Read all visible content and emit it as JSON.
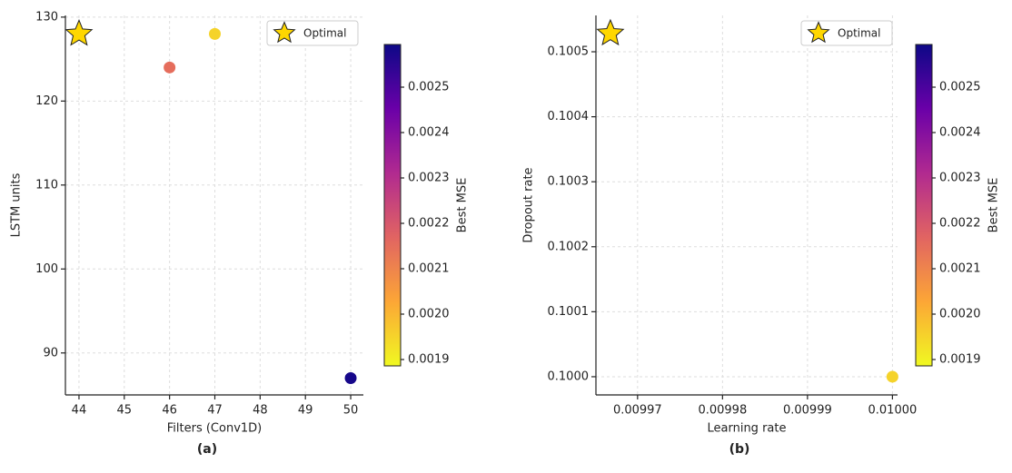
{
  "chart_data": [
    {
      "type": "scatter",
      "caption": "(a)",
      "x_label": "Filters (Conv1D)",
      "y_label": "LSTM units",
      "xlim": [
        43.7,
        50.28
      ],
      "xticks": [
        44,
        45,
        46,
        47,
        48,
        49,
        50
      ],
      "ylim": [
        85,
        130.2
      ],
      "yticks": [
        90,
        100,
        110,
        120,
        130
      ],
      "grid": true,
      "points": {
        "x": [
          46,
          47,
          50
        ],
        "y": [
          124,
          128,
          87
        ],
        "mse": [
          0.00215,
          0.00195,
          0.00258
        ]
      },
      "optimal": {
        "name": "Optimal",
        "x": 44,
        "y": 128,
        "color": "#ffd700"
      },
      "legend": "upper right",
      "colorbar": {
        "label": "Best MSE",
        "clim": [
          0.001886,
          0.002594
        ],
        "ticks": [
          0.0019,
          {
            "value": 0.002,
            "label": "0.0020"
          },
          0.0021,
          0.0022,
          0.0023,
          0.0024,
          0.0025
        ],
        "colormap": [
          "#f0f921",
          "#fca636",
          "#e16462",
          "#b12a90",
          "#6a00a8",
          "#0d0887"
        ]
      }
    },
    {
      "type": "scatter",
      "caption": "(b)",
      "x_label": "Learning rate",
      "y_label": "Dropout rate",
      "xlim": [
        0.0099651,
        0.0100006
      ],
      "xticks": [
        0.00997,
        0.00998,
        0.00999,
        {
          "value": 0.01,
          "label": "0.01000"
        }
      ],
      "ylim": [
        0.099972,
        0.1005559
      ],
      "yticks": [
        {
          "value": 0.1,
          "label": "0.1000"
        },
        0.1001,
        0.1002,
        0.1003,
        0.1004,
        0.1005
      ],
      "grid": true,
      "points": {
        "x": [
          0.01
        ],
        "y": [
          0.1
        ],
        "mse": [
          0.00195
        ]
      },
      "optimal": {
        "name": "Optimal",
        "x": 0.0099668,
        "y": 0.100528,
        "color": "#ffd700"
      },
      "legend": "upper right",
      "colorbar": {
        "label": "Best MSE",
        "clim": [
          0.001886,
          0.002594
        ],
        "ticks": [
          0.0019,
          {
            "value": 0.002,
            "label": "0.0020"
          },
          0.0021,
          0.0022,
          0.0023,
          0.0024,
          0.0025
        ],
        "colormap": [
          "#f0f921",
          "#fca636",
          "#e16462",
          "#b12a90",
          "#6a00a8",
          "#0d0887"
        ]
      }
    }
  ]
}
